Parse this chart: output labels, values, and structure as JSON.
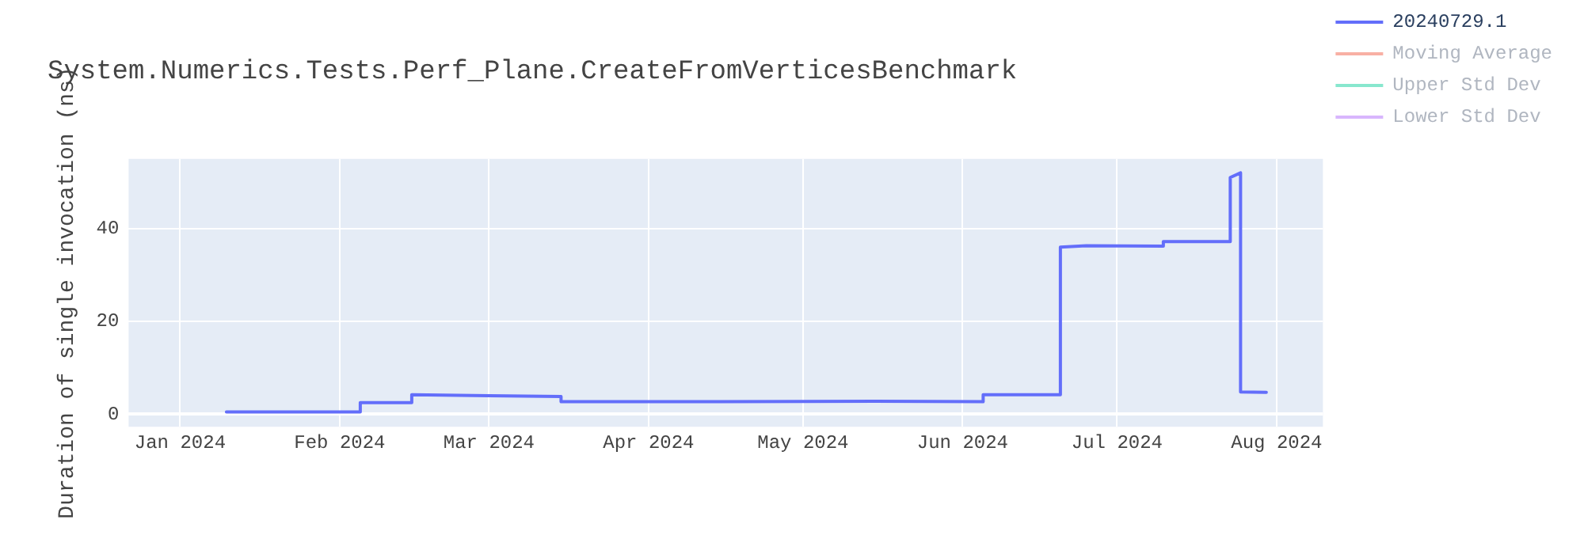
{
  "chart_data": {
    "type": "line",
    "title": "System.Numerics.Tests.Perf_Plane.CreateFromVerticesBenchmark",
    "ylabel": "Duration of single invocation (ns)",
    "series": [
      {
        "name": "20240729.1",
        "color": "#636efa",
        "x": [
          "2024-01-10",
          "2024-02-05",
          "2024-02-05",
          "2024-02-15",
          "2024-02-15",
          "2024-03-01",
          "2024-03-15",
          "2024-03-15",
          "2024-04-15",
          "2024-05-15",
          "2024-06-05",
          "2024-06-05",
          "2024-06-20",
          "2024-06-20",
          "2024-06-25",
          "2024-07-10",
          "2024-07-10",
          "2024-07-23",
          "2024-07-23",
          "2024-07-25",
          "2024-07-25",
          "2024-07-30"
        ],
        "values": [
          0.5,
          0.5,
          2.5,
          2.5,
          4.2,
          4,
          3.8,
          2.7,
          2.7,
          2.8,
          2.7,
          4.2,
          4.2,
          36,
          36.3,
          36.2,
          37.2,
          37.2,
          51,
          52,
          4.8,
          4.7
        ]
      },
      {
        "name": "Moving Average",
        "color": "#ef553b"
      },
      {
        "name": "Upper Std Dev",
        "color": "#00cc96"
      },
      {
        "name": "Lower Std Dev",
        "color": "#ab63fa"
      }
    ],
    "xlim": [
      "2023-12-22",
      "2024-08-10"
    ],
    "xticks": [
      {
        "value": "2024-01",
        "label": "Jan 2024"
      },
      {
        "value": "2024-02",
        "label": "Feb 2024"
      },
      {
        "value": "2024-03",
        "label": "Mar 2024"
      },
      {
        "value": "2024-04",
        "label": "Apr 2024"
      },
      {
        "value": "2024-05",
        "label": "May 2024"
      },
      {
        "value": "2024-06",
        "label": "Jun 2024"
      },
      {
        "value": "2024-07",
        "label": "Jul 2024"
      },
      {
        "value": "2024-08",
        "label": "Aug 2024"
      }
    ],
    "ylim": [
      -2.7,
      55
    ],
    "yticks": [
      0,
      20,
      40
    ],
    "grid": true,
    "legend": "top right",
    "line_style": "solid",
    "marker": "none"
  }
}
